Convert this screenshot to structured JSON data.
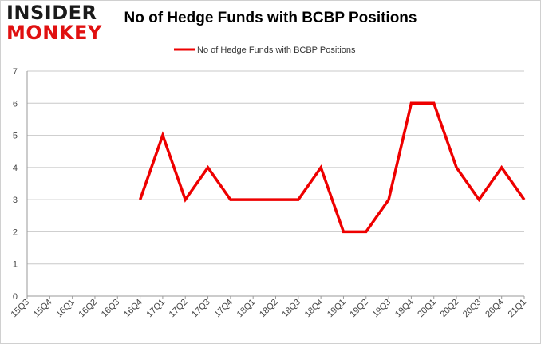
{
  "logo": {
    "line1": "INSIDER",
    "line2": "MONKEY"
  },
  "chart_data": {
    "type": "line",
    "title": "No of Hedge Funds with BCBP Positions",
    "categories": [
      "15Q3",
      "15Q4",
      "16Q1",
      "16Q2",
      "16Q3",
      "16Q4",
      "17Q1",
      "17Q2",
      "17Q3",
      "17Q4",
      "18Q1",
      "18Q2",
      "18Q3",
      "18Q4",
      "19Q1",
      "19Q2",
      "19Q3",
      "19Q4",
      "20Q1",
      "20Q2",
      "20Q3",
      "20Q4",
      "21Q1"
    ],
    "series": [
      {
        "name": "No of Hedge Funds with BCBP Positions",
        "values": [
          null,
          null,
          null,
          null,
          null,
          3,
          5,
          3,
          4,
          3,
          3,
          3,
          3,
          4,
          2,
          2,
          3,
          6,
          6,
          4,
          3,
          4,
          3
        ],
        "color": "#ee0000"
      }
    ],
    "xlabel": "",
    "ylabel": "",
    "ylim": [
      0,
      7
    ],
    "yticks": [
      0,
      1,
      2,
      3,
      4,
      5,
      6,
      7
    ],
    "grid": true,
    "legend_position": "top-center"
  }
}
